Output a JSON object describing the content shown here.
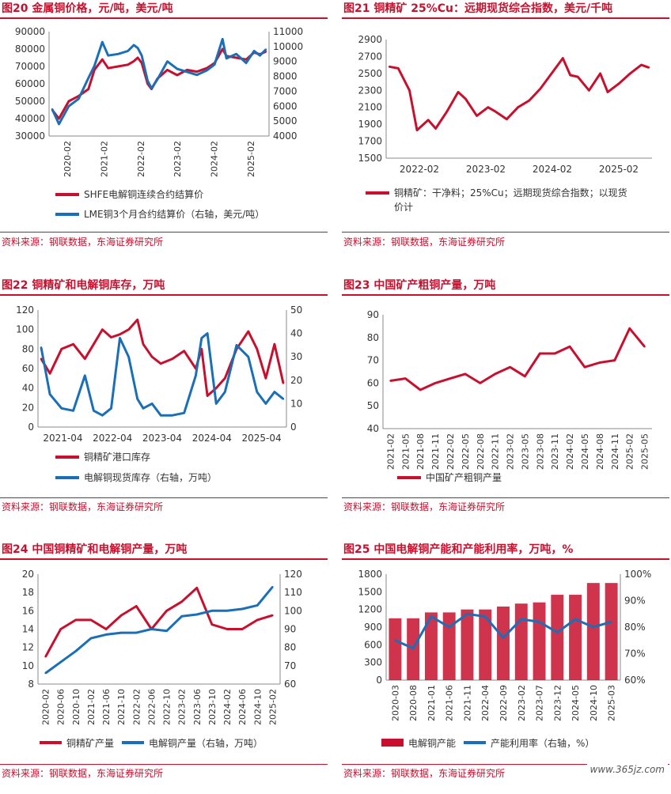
{
  "source_text": "资料来源：钢联数据，东海证券研究所",
  "watermark": "www.365jz.com",
  "colors": {
    "red": "#c8102e",
    "blue": "#1a6fb6"
  },
  "charts": [
    {
      "id": "fig20",
      "title": "图20  金属铜价格，元/吨，美元/吨",
      "chart_data": {
        "type": "line",
        "x_ticks": [
          "2020-02",
          "2021-02",
          "2022-02",
          "2023-02",
          "2024-02",
          "2025-02"
        ],
        "x": [
          2020.08,
          2020.25,
          2020.5,
          2020.75,
          2021.0,
          2021.15,
          2021.35,
          2021.5,
          2021.75,
          2022.0,
          2022.15,
          2022.25,
          2022.35,
          2022.5,
          2022.6,
          2022.75,
          2023.0,
          2023.25,
          2023.5,
          2023.75,
          2024.0,
          2024.2,
          2024.4,
          2024.5,
          2024.75,
          2025.0,
          2025.2,
          2025.35,
          2025.5
        ],
        "ylim": [
          30000,
          90000
        ],
        "y2lim": [
          4000,
          11000
        ],
        "yticks": [
          30000,
          40000,
          50000,
          60000,
          70000,
          80000,
          90000
        ],
        "y2ticks": [
          4000,
          5000,
          6000,
          7000,
          8000,
          9000,
          10000,
          11000
        ],
        "series": [
          {
            "name": "SHFE电解铜连续合约结算价",
            "axis": "left",
            "color": "#c8102e",
            "values": [
              45000,
              40000,
              50000,
              53000,
              57000,
              68000,
              74000,
              69000,
              70000,
              71000,
              73000,
              75000,
              72000,
              60000,
              57000,
              63000,
              68000,
              65000,
              68000,
              67000,
              69000,
              72000,
              80000,
              76000,
              75000,
              74000,
              78000,
              77000,
              78500
            ]
          },
          {
            "name": "LME铜3个月合约结算价（右轴，美元/吨）",
            "axis": "right",
            "color": "#1a6fb6",
            "values": [
              5800,
              4800,
              6000,
              6500,
              7900,
              8700,
              10300,
              9400,
              9500,
              9700,
              10100,
              9900,
              9400,
              7700,
              7200,
              7800,
              9000,
              8500,
              8300,
              8100,
              8400,
              8800,
              10500,
              9200,
              9500,
              8900,
              9700,
              9400,
              9800
            ]
          }
        ]
      }
    },
    {
      "id": "fig21",
      "title": "图21  铜精矿 25%Cu：远期现货综合指数，美元/千吨",
      "chart_data": {
        "type": "line",
        "x_ticks": [
          "2022-02",
          "2023-02",
          "2024-02",
          "2025-02"
        ],
        "x": [
          2022.08,
          2022.2,
          2022.35,
          2022.45,
          2022.6,
          2022.7,
          2022.85,
          2023.0,
          2023.1,
          2023.25,
          2023.4,
          2023.5,
          2023.65,
          2023.8,
          2023.95,
          2024.1,
          2024.25,
          2024.4,
          2024.5,
          2024.6,
          2024.75,
          2024.9,
          2025.0,
          2025.15,
          2025.3,
          2025.45,
          2025.55
        ],
        "ylim": [
          1500,
          2900
        ],
        "yticks": [
          1500,
          1700,
          1900,
          2100,
          2300,
          2500,
          2700,
          2900
        ],
        "series": [
          {
            "name": "铜精矿：干净料；25%Cu；远期现货综合指数；以现货价计",
            "color": "#c8102e",
            "values": [
              2580,
              2560,
              2300,
              1830,
              1950,
              1850,
              2050,
              2280,
              2200,
              2000,
              2100,
              2050,
              1960,
              2100,
              2180,
              2320,
              2500,
              2680,
              2480,
              2460,
              2300,
              2500,
              2280,
              2380,
              2500,
              2600,
              2570
            ]
          }
        ]
      }
    },
    {
      "id": "fig22",
      "title": "图22  铜精矿和电解铜库存，万吨",
      "chart_data": {
        "type": "line",
        "x_ticks": [
          "2021-04",
          "2022-04",
          "2023-04",
          "2024-04",
          "2025-04"
        ],
        "x": [
          2021.25,
          2021.4,
          2021.6,
          2021.8,
          2022.0,
          2022.15,
          2022.3,
          2022.45,
          2022.6,
          2022.75,
          2022.9,
          2023.0,
          2023.15,
          2023.3,
          2023.5,
          2023.7,
          2023.9,
          2024.0,
          2024.1,
          2024.25,
          2024.4,
          2024.6,
          2024.8,
          2024.95,
          2025.1,
          2025.25,
          2025.4
        ],
        "ylim": [
          0,
          120
        ],
        "y2lim": [
          0,
          50
        ],
        "yticks": [
          0,
          20,
          40,
          60,
          80,
          100,
          120
        ],
        "y2ticks": [
          0,
          10,
          20,
          30,
          40,
          50
        ],
        "series": [
          {
            "name": "铜精矿港口库存",
            "axis": "left",
            "color": "#c8102e",
            "values": [
              70,
              55,
              80,
              85,
              70,
              85,
              100,
              92,
              95,
              100,
              110,
              85,
              72,
              65,
              70,
              78,
              60,
              80,
              32,
              40,
              50,
              80,
              98,
              80,
              50,
              85,
              45
            ]
          },
          {
            "name": "电解铜现货库存（右轴，万吨）",
            "axis": "right",
            "color": "#1a6fb6",
            "values": [
              34,
              14,
              8,
              7,
              22,
              7,
              5,
              8,
              38,
              30,
              12,
              8,
              10,
              5,
              5,
              6,
              22,
              38,
              40,
              10,
              15,
              35,
              30,
              15,
              10,
              15,
              12
            ]
          }
        ]
      }
    },
    {
      "id": "fig23",
      "title": "图23  中国矿产粗铜产量，万吨",
      "chart_data": {
        "type": "line",
        "x_ticks": [
          "2021-02",
          "2021-05",
          "2021-08",
          "2021-11",
          "2022-02",
          "2022-05",
          "2022-08",
          "2022-11",
          "2023-02",
          "2023-05",
          "2023-08",
          "2023-11",
          "2024-02",
          "2024-05",
          "2024-08",
          "2024-11",
          "2025-02",
          "2025-05"
        ],
        "ylim": [
          40,
          90
        ],
        "yticks": [
          40,
          50,
          60,
          70,
          80,
          90
        ],
        "series": [
          {
            "name": "中国矿产粗铜产量",
            "color": "#c8102e",
            "values": [
              61,
              62,
              57,
              60,
              62,
              64,
              60,
              64,
              67,
              63,
              73,
              73,
              76,
              67,
              69,
              70,
              84,
              76
            ]
          }
        ]
      }
    },
    {
      "id": "fig24",
      "title": "图24  中国铜精矿和电解铜产量，万吨",
      "chart_data": {
        "type": "line",
        "x_ticks": [
          "2020-02",
          "2020-06",
          "2020-10",
          "2021-02",
          "2021-06",
          "2021-10",
          "2022-02",
          "2022-06",
          "2022-10",
          "2023-02",
          "2023-06",
          "2023-10",
          "2024-02",
          "2024-06",
          "2024-10",
          "2025-02"
        ],
        "ylim": [
          8,
          20
        ],
        "y2lim": [
          60,
          120
        ],
        "yticks": [
          8,
          10,
          12,
          14,
          16,
          18,
          20
        ],
        "y2ticks": [
          60,
          70,
          80,
          90,
          100,
          110,
          120
        ],
        "series": [
          {
            "name": "铜精矿产量",
            "axis": "left",
            "color": "#c8102e",
            "values": [
              11,
              14,
              15,
              15,
              14,
              15.5,
              16.5,
              14,
              16,
              17,
              18.5,
              14.5,
              14,
              14,
              15,
              15.5
            ]
          },
          {
            "name": "电解铜产量（右轴，万吨）",
            "axis": "right",
            "color": "#1a6fb6",
            "values": [
              66,
              72,
              78,
              85,
              87,
              88,
              88,
              90,
              89,
              97,
              98,
              100,
              100,
              101,
              103,
              113
            ]
          }
        ]
      }
    },
    {
      "id": "fig25",
      "title": "图25  中国电解铜产能和产能利用率，万吨，%",
      "chart_data": {
        "type": "bar+line",
        "x_ticks": [
          "2020-03",
          "2020-08",
          "2021-01",
          "2021-06",
          "2021-11",
          "2022-04",
          "2022-09",
          "2023-02",
          "2023-07",
          "2023-12",
          "2024-05",
          "2024-10",
          "2025-03"
        ],
        "ylim": [
          0,
          1800
        ],
        "y2lim": [
          60,
          100
        ],
        "yticks": [
          0,
          300,
          600,
          900,
          1200,
          1500,
          1800
        ],
        "y2ticks": [
          "60%",
          "70%",
          "80%",
          "90%",
          "100%"
        ],
        "series": [
          {
            "name": "电解铜产能",
            "axis": "left",
            "type": "bar",
            "color": "#c8102e",
            "values": [
              1050,
              1050,
              1150,
              1150,
              1200,
              1200,
              1250,
              1300,
              1320,
              1450,
              1450,
              1650,
              1650
            ]
          },
          {
            "name": "产能利用率（右轴，%）",
            "axis": "right",
            "type": "line",
            "color": "#1a6fb6",
            "values": [
              75,
              72,
              84,
              80,
              85,
              84,
              76,
              83,
              82,
              78,
              83,
              80,
              82
            ]
          }
        ]
      }
    }
  ]
}
